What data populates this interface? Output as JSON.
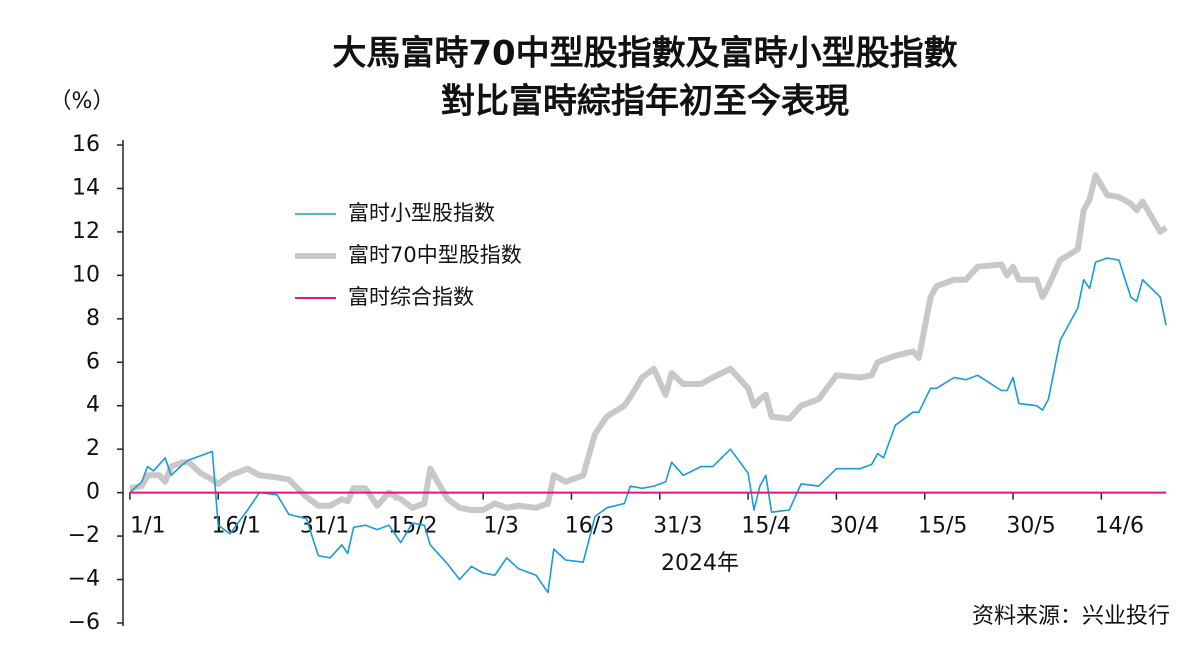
{
  "chart_data": {
    "type": "line",
    "title": [
      "大馬富時70中型股指數及富時小型股指數",
      "對比富時綜指年初至今表現"
    ],
    "y_label": "（%）",
    "x_label": "2024年",
    "source": "资料来源：兴业投行",
    "x": [
      1,
      3,
      4,
      5,
      6,
      7,
      8,
      10,
      11,
      13,
      15,
      16,
      18,
      21,
      23,
      26,
      28,
      31,
      33,
      35,
      37,
      38,
      39,
      41,
      43,
      45,
      47,
      49,
      51,
      52,
      55,
      57,
      59,
      61,
      63,
      65,
      67,
      70,
      72,
      73,
      75,
      78,
      80,
      82,
      85,
      86,
      88,
      90,
      92,
      93,
      95,
      98,
      100,
      103,
      106,
      107,
      108,
      109,
      110,
      113,
      115,
      118,
      121,
      125,
      127,
      128,
      129,
      131,
      134,
      135,
      137,
      138,
      141,
      143,
      145,
      149,
      150,
      151,
      152,
      155,
      156,
      157,
      159,
      162,
      163,
      164,
      165,
      167,
      169,
      171,
      172,
      173,
      176,
      177
    ],
    "xlim": [
      0,
      178
    ],
    "xticks": [
      {
        "value": 1,
        "label": "1/1"
      },
      {
        "value": 16,
        "label": "16/1"
      },
      {
        "value": 31,
        "label": "31/1"
      },
      {
        "value": 46,
        "label": "15/2"
      },
      {
        "value": 61,
        "label": "1/3"
      },
      {
        "value": 76,
        "label": "16/3"
      },
      {
        "value": 91,
        "label": "31/3"
      },
      {
        "value": 106,
        "label": "15/4"
      },
      {
        "value": 121,
        "label": "30/4"
      },
      {
        "value": 136,
        "label": "15/5"
      },
      {
        "value": 151,
        "label": "30/5"
      },
      {
        "value": 166,
        "label": "14/6"
      }
    ],
    "ylim": [
      -6,
      16
    ],
    "yticks": [
      {
        "value": -6,
        "label": "−6"
      },
      {
        "value": -4,
        "label": "−4"
      },
      {
        "value": -2,
        "label": "−2"
      },
      0,
      2,
      4,
      6,
      8,
      10,
      12,
      14,
      16
    ],
    "series": [
      {
        "name": "富时小型股指数",
        "color": "#1a9ad6",
        "line_width": 1.6,
        "values": [
          0,
          0.5,
          1.2,
          1.0,
          1.3,
          1.6,
          0.8,
          1.3,
          1.5,
          1.7,
          1.9,
          -1.5,
          -1.9,
          -0.8,
          0,
          -0.1,
          -1.0,
          -1.2,
          -2.9,
          -3.0,
          -2.4,
          -2.8,
          -1.6,
          -1.5,
          -1.7,
          -1.5,
          -2.3,
          -1.4,
          -1.5,
          -2.4,
          -3.3,
          -4.0,
          -3.4,
          -3.7,
          -3.8,
          -3.0,
          -3.5,
          -3.8,
          -4.6,
          -2.6,
          -3.1,
          -3.2,
          -1.1,
          -0.7,
          -0.5,
          0.3,
          0.2,
          0.3,
          0.5,
          1.4,
          0.8,
          1.2,
          1.2,
          2.0,
          0.9,
          -0.8,
          0.3,
          0.8,
          -0.9,
          -0.8,
          0.4,
          0.3,
          1.1,
          1.1,
          1.3,
          1.8,
          1.6,
          3.1,
          3.7,
          3.7,
          4.8,
          4.8,
          5.3,
          5.2,
          5.4,
          4.7,
          4.7,
          5.3,
          4.1,
          4.0,
          3.8,
          4.3,
          7.0,
          8.5,
          9.8,
          9.4,
          10.6,
          10.8,
          10.7,
          9.0,
          8.8,
          9.8,
          9.0,
          7.7
        ]
      },
      {
        "name": "富时70中型股指数",
        "color": "#c8c8c8",
        "line_width": 6,
        "values": [
          0.2,
          0.3,
          0.8,
          0.8,
          0.8,
          0.5,
          1.2,
          1.4,
          1.4,
          0.9,
          0.6,
          0.4,
          0.8,
          1.1,
          0.8,
          0.7,
          0.6,
          -0.2,
          -0.6,
          -0.6,
          -0.3,
          -0.4,
          0.2,
          0.2,
          -0.6,
          0.0,
          -0.3,
          -0.7,
          -0.5,
          1.1,
          -0.3,
          -0.7,
          -0.8,
          -0.8,
          -0.5,
          -0.7,
          -0.6,
          -0.7,
          -0.5,
          0.8,
          0.5,
          0.8,
          2.7,
          3.5,
          4.0,
          4.4,
          5.3,
          5.7,
          4.5,
          5.5,
          5.0,
          5.0,
          5.3,
          5.7,
          4.8,
          4.0,
          4.3,
          4.5,
          3.5,
          3.4,
          4.0,
          4.3,
          5.4,
          5.3,
          5.4,
          6.0,
          6.1,
          6.3,
          6.5,
          6.2,
          9.0,
          9.5,
          9.8,
          9.8,
          10.4,
          10.5,
          10.0,
          10.4,
          9.8,
          9.8,
          9.0,
          9.5,
          10.7,
          11.2,
          13.0,
          13.5,
          14.6,
          13.7,
          13.6,
          13.3,
          13.0,
          13.4,
          12.0,
          12.2
        ]
      },
      {
        "name": "富时综合指数",
        "color": "#e0157f",
        "line_width": 2,
        "values": [
          0,
          0,
          0,
          0,
          0,
          0,
          0,
          0,
          0,
          0,
          0,
          0,
          0,
          0,
          0,
          0,
          0,
          0,
          0,
          0,
          0,
          0,
          0,
          0,
          0,
          0,
          0,
          0,
          0,
          0,
          0,
          0,
          0,
          0,
          0,
          0,
          0,
          0,
          0,
          0,
          0,
          0,
          0,
          0,
          0,
          0,
          0,
          0,
          0,
          0,
          0,
          0,
          0,
          0,
          0,
          0,
          0,
          0,
          0,
          0,
          0,
          0,
          0,
          0,
          0,
          0,
          0,
          0,
          0,
          0,
          0,
          0,
          0,
          0,
          0,
          0,
          0,
          0,
          0,
          0,
          0,
          0,
          0,
          0,
          0,
          0,
          0,
          0,
          0,
          0,
          0,
          0,
          0,
          0
        ]
      }
    ]
  }
}
